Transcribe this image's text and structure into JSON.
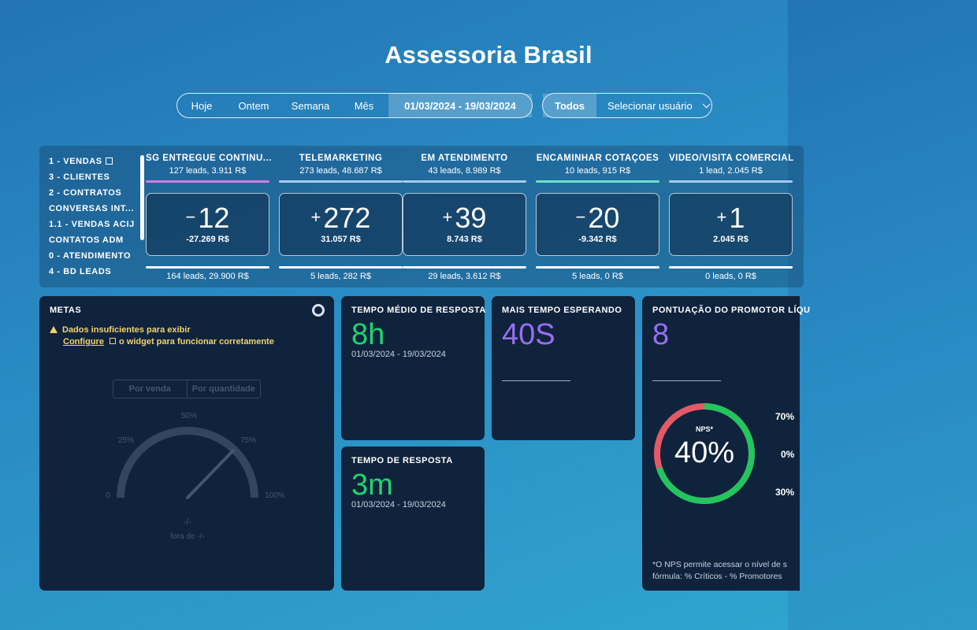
{
  "header": {
    "title": "Assessoria Brasil"
  },
  "period_filter": {
    "options": [
      "Hoje",
      "Ontem",
      "Semana",
      "Mês",
      "01/03/2024 - 19/03/2024"
    ],
    "active_index": 4
  },
  "user_filter": {
    "all_label": "Todos",
    "select_label": "Selecionar usuário"
  },
  "funnel": {
    "tabs": [
      "1 - VENDAS",
      "3 - CLIENTES",
      "2 - CONTRATOS",
      "CONVERSAS INT...",
      "1.1 - VENDAS ACIJ",
      "CONTATOS ADM",
      "0 - ATENDIMENTO",
      "4 - BD LEADS"
    ],
    "stages": [
      {
        "name": "SG ENTREGUE CONTINU...",
        "sub": "127 leads, 3.911 R$",
        "color": "#d27be0",
        "sign": "−",
        "value": "12",
        "delta": "-27.269 R$",
        "footer": "164 leads, 29.900 R$"
      },
      {
        "name": "TELEMARKETING",
        "sub": "273 leads, 48.687 R$",
        "color": "#a9c9ee",
        "sign": "+",
        "value": "272",
        "delta": "31.057 R$",
        "footer": "5 leads, 282 R$"
      },
      {
        "name": "EM ATENDIMENTO",
        "sub": "43 leads, 8.989 R$",
        "color": "#a9c9ee",
        "sign": "+",
        "value": "39",
        "delta": "8.743 R$",
        "footer": "29 leads, 3.612 R$"
      },
      {
        "name": "ENCAMINHAR COTAÇOES",
        "sub": "10 leads, 915 R$",
        "color": "#6fe0c8",
        "sign": "−",
        "value": "20",
        "delta": "-9.342 R$",
        "footer": "5 leads, 0 R$"
      },
      {
        "name": "VIDEO/VISITA COMERCIAL",
        "sub": "1 lead, 2.045 R$",
        "color": "#a9c9ee",
        "sign": "+",
        "value": "1",
        "delta": "2.045 R$",
        "footer": "0 leads, 0 R$"
      }
    ]
  },
  "metas": {
    "title": "METAS",
    "warning": "Dados insuficientes para exibir",
    "configure_link": "Configure",
    "configure_rest": "o widget para funcionar corretamente",
    "toggle": [
      "Por venda",
      "Por quantidade"
    ],
    "gauge_labels": [
      "0",
      "25%",
      "50%",
      "75%",
      "100%"
    ],
    "gauge_value": "-/-",
    "gauge_sub": "fora de -/-"
  },
  "tempo_medio": {
    "title": "TEMPO MÉDIO DE RESPOSTA",
    "value": "8h",
    "date": "01/03/2024 - 19/03/2024",
    "color": "#22d46e"
  },
  "tempo_resposta": {
    "title": "TEMPO DE RESPOSTA",
    "value": "3m",
    "date": "01/03/2024 - 19/03/2024",
    "color": "#22d46e"
  },
  "mais_tempo": {
    "title": "MAIS TEMPO ESPERANDO",
    "value": "40S",
    "color": "#9a6ef0"
  },
  "nps": {
    "title": "PONTUAÇÃO DO PROMOTOR LÍQU",
    "value": "8",
    "color": "#9a6ef0",
    "ring_label": "NPS*",
    "ring_value": "40%",
    "ring_fraction": 0.7,
    "side_values": [
      "70%",
      "0%",
      "30%"
    ],
    "footer_1": "*O NPS permite acessar o nível de s",
    "footer_2": "fórmula: % Críticos - % Promotores"
  }
}
